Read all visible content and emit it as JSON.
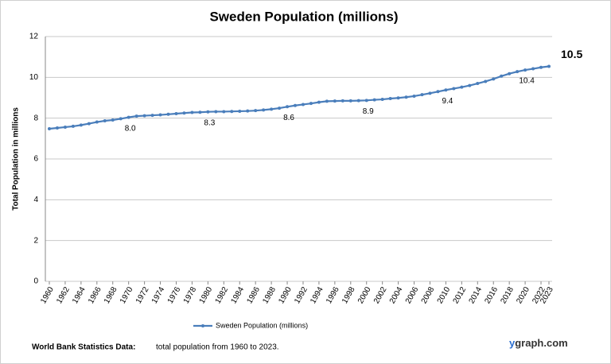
{
  "chart_data": {
    "type": "line",
    "title": "Sweden Population (millions)",
    "y_label": "Total Population  in millions",
    "x": [
      1960,
      1961,
      1962,
      1963,
      1964,
      1965,
      1966,
      1967,
      1968,
      1969,
      1970,
      1971,
      1972,
      1973,
      1974,
      1975,
      1976,
      1977,
      1978,
      1979,
      1980,
      1981,
      1982,
      1983,
      1984,
      1985,
      1986,
      1987,
      1988,
      1989,
      1990,
      1991,
      1992,
      1993,
      1994,
      1995,
      1996,
      1997,
      1998,
      1999,
      2000,
      2001,
      2002,
      2003,
      2004,
      2005,
      2006,
      2007,
      2008,
      2009,
      2010,
      2011,
      2012,
      2013,
      2014,
      2015,
      2016,
      2017,
      2018,
      2019,
      2020,
      2021,
      2022,
      2023
    ],
    "series": [
      {
        "name": "Sweden Population (millions)",
        "color": "#4a7ebb",
        "values": [
          7.48,
          7.52,
          7.56,
          7.6,
          7.66,
          7.73,
          7.81,
          7.87,
          7.91,
          7.97,
          8.04,
          8.1,
          8.12,
          8.14,
          8.16,
          8.19,
          8.22,
          8.25,
          8.28,
          8.29,
          8.31,
          8.32,
          8.32,
          8.33,
          8.34,
          8.35,
          8.37,
          8.4,
          8.44,
          8.49,
          8.56,
          8.62,
          8.67,
          8.72,
          8.78,
          8.83,
          8.84,
          8.85,
          8.85,
          8.86,
          8.87,
          8.9,
          8.92,
          8.96,
          8.99,
          9.03,
          9.08,
          9.15,
          9.22,
          9.3,
          9.38,
          9.45,
          9.52,
          9.6,
          9.7,
          9.8,
          9.92,
          10.06,
          10.18,
          10.28,
          10.36,
          10.42,
          10.49,
          10.54
        ],
        "value_labels": [
          null,
          null,
          null,
          null,
          null,
          null,
          null,
          null,
          null,
          null,
          "8.0",
          null,
          null,
          null,
          null,
          null,
          null,
          null,
          null,
          null,
          "8.3",
          null,
          null,
          null,
          null,
          null,
          null,
          null,
          null,
          null,
          "8.6",
          null,
          null,
          null,
          null,
          null,
          null,
          null,
          null,
          null,
          "8.9",
          null,
          null,
          null,
          null,
          null,
          null,
          null,
          null,
          null,
          "9.4",
          null,
          null,
          null,
          null,
          null,
          null,
          null,
          null,
          null,
          "10.4",
          null,
          null,
          "10.5"
        ]
      }
    ],
    "xlim": [
      1960,
      2023
    ],
    "xticks": [
      1960,
      1962,
      1964,
      1966,
      1968,
      1970,
      1972,
      1974,
      1976,
      1978,
      1980,
      1982,
      1984,
      1986,
      1988,
      1990,
      1992,
      1994,
      1996,
      1998,
      2000,
      2002,
      2004,
      2006,
      2008,
      2010,
      2012,
      2014,
      2016,
      2018,
      2020,
      2022,
      2023
    ],
    "ylim": [
      0,
      12
    ],
    "yticks": [
      0,
      2,
      4,
      6,
      8,
      10,
      12
    ],
    "grid": true,
    "legend": "bottom",
    "source": "World Bank Statistics Data:",
    "note": "total population from 1960 to 2023.",
    "watermark_y": "y",
    "watermark_rest": "graph.com"
  }
}
